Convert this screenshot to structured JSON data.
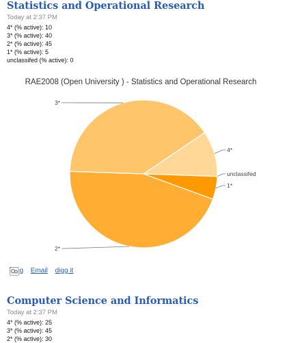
{
  "posts": [
    {
      "title": "Statistics and Operational Research",
      "time": "Today at 2:37 PM",
      "stats": [
        "4* (% active): 10",
        "3* (% active): 40",
        "2* (% active): 45",
        "1* (% active): 5",
        "unclassifed (% active): 0"
      ]
    },
    {
      "title": "Computer Science and Informatics",
      "time": "Today at 2:37 PM",
      "stats": [
        "4* (% active): 25",
        "3* (% active): 45",
        "2* (% active): 30"
      ]
    }
  ],
  "chart_data": {
    "type": "pie",
    "title": "RAE2008 (Open University ) - Statistics and Operational Research",
    "slices": [
      {
        "label": "4*",
        "value": 10,
        "color": "#ffd898"
      },
      {
        "label": "unclassifed",
        "value": 0,
        "color": "#ffb347"
      },
      {
        "label": "1*",
        "value": 5,
        "color": "#ff9900"
      },
      {
        "label": "2*",
        "value": 45,
        "color": "#ffad33"
      },
      {
        "label": "3*",
        "value": 40,
        "color": "#ffc56b"
      }
    ],
    "legend": "none"
  },
  "share": {
    "blog": "Blog",
    "email": "Email",
    "digg": "digg it"
  },
  "colors": {
    "link": "#2a5db0",
    "time": "#8a8a8a"
  }
}
